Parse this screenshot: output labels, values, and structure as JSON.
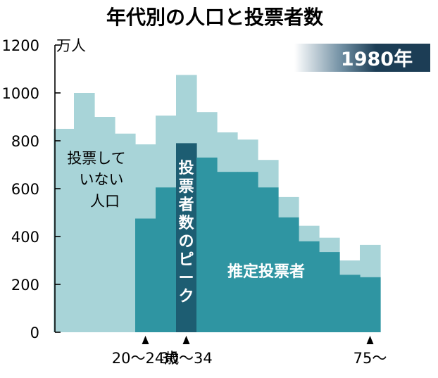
{
  "title": "年代別の人口と投票者数",
  "year_badge": "1980年",
  "y_unit": "万人",
  "annotations": {
    "non_voters": [
      "投票して",
      "いない",
      "人口"
    ],
    "peak": [
      "投",
      "票",
      "者",
      "数",
      "の",
      "ピ",
      "ー",
      "ク"
    ],
    "voters": "推定投票者"
  },
  "x_tick_labels": [
    {
      "label": "20〜24歳",
      "bin": 8
    },
    {
      "label": "30〜34",
      "bin": 10
    },
    {
      "label": "75〜",
      "bin": 19
    }
  ],
  "colors": {
    "population": "#a8d4d8",
    "voters": "#2f95a2",
    "peak": "#1d5d72",
    "badge": "#1c3d55"
  },
  "chart_data": {
    "type": "bar",
    "title": "年代別の人口と投票者数",
    "ylabel": "万人",
    "ylim": [
      0,
      1200
    ],
    "yticks": [
      0,
      200,
      400,
      600,
      800,
      1000,
      1200
    ],
    "grid": false,
    "series": [
      {
        "name": "人口",
        "values": [
          850,
          1000,
          900,
          830,
          785,
          905,
          1075,
          920,
          835,
          805,
          720,
          565,
          445,
          395,
          300,
          365
        ]
      },
      {
        "name": "推定投票者",
        "values": [
          0,
          0,
          0,
          0,
          475,
          605,
          790,
          730,
          670,
          670,
          605,
          480,
          380,
          335,
          240,
          230
        ]
      }
    ],
    "highlight_index": 6,
    "highlight_label": "投票者数のピーク"
  }
}
